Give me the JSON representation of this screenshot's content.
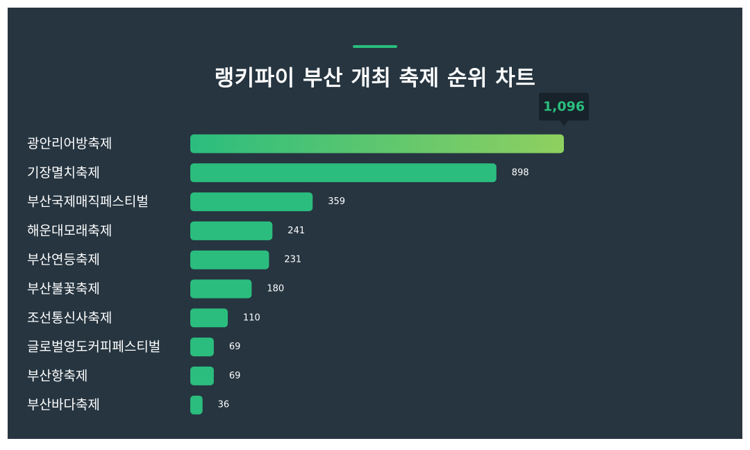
{
  "title": "랭키파이 부산 개최 축제 순위 차트",
  "colors": {
    "background": "#263540",
    "bar": "#2bbd7e",
    "bar_top_gradient_end": "#8fd060",
    "accent": "#2bbd7e",
    "tooltip_bg": "#17222a",
    "text": "#ffffff"
  },
  "chart_data": {
    "type": "bar",
    "orientation": "horizontal",
    "categories": [
      "광안리어방축제",
      "기장멸치축제",
      "부산국제매직페스티벌",
      "해운대모래축제",
      "부산연등축제",
      "부산불꽃축제",
      "조선통신사축제",
      "글로벌영도커피페스티벌",
      "부산항축제",
      "부산바다축제"
    ],
    "values": [
      1096,
      898,
      359,
      241,
      231,
      180,
      110,
      69,
      69,
      36
    ],
    "value_labels": [
      "1,096",
      "898",
      "359",
      "241",
      "231",
      "180",
      "110",
      "69",
      "69",
      "36"
    ],
    "highlight_index": 0,
    "xlim": [
      0,
      1096
    ],
    "grid": false,
    "legend": "none"
  }
}
